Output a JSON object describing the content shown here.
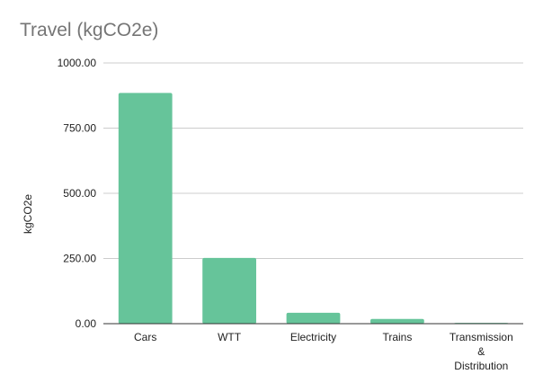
{
  "chart_data": {
    "type": "bar",
    "title": "Travel (kgCO2e)",
    "xlabel": "",
    "ylabel": "kgCO2e",
    "categories": [
      "Cars",
      "WTT",
      "Electricity",
      "Trains",
      "Transmission & Distribution"
    ],
    "category_label_lines": [
      [
        "Cars"
      ],
      [
        "WTT"
      ],
      [
        "Electricity"
      ],
      [
        "Trains"
      ],
      [
        "Transmission",
        "&",
        "Distribution"
      ]
    ],
    "values": [
      885,
      252,
      42,
      18,
      3
    ],
    "ylim": [
      0,
      1000
    ],
    "yticks": [
      0,
      250,
      500,
      750,
      1000
    ],
    "ytick_labels": [
      "0.00",
      "250.00",
      "500.00",
      "750.00",
      "1000.00"
    ],
    "grid": true,
    "legend": "none",
    "bar_color": "#66c49a",
    "grid_color": "#cccccc",
    "axis_color": "#333333",
    "text_color": "#222222",
    "title_color": "#757575"
  }
}
